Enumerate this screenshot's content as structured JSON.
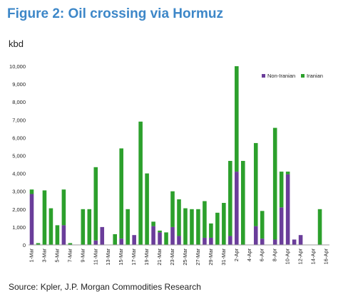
{
  "figure_title": "Figure 2: Oil crossing via Hormuz",
  "source_text": "Source: Kpler, J.P. Morgan Commodities Research",
  "chart_data": {
    "type": "bar",
    "stacked": true,
    "ylabel": "kbd",
    "ylim": [
      0,
      10000
    ],
    "yticks": [
      0,
      1000,
      2000,
      3000,
      4000,
      5000,
      6000,
      7000,
      8000,
      9000,
      10000
    ],
    "ytick_labels": [
      "0",
      "1,000",
      "2,000",
      "3,000",
      "4,000",
      "5,000",
      "6,000",
      "7,000",
      "8,000",
      "9,000",
      "10,000"
    ],
    "categories": [
      "1-Mar",
      "2-Mar",
      "3-Mar",
      "4-Mar",
      "5-Mar",
      "6-Mar",
      "7-Mar",
      "8-Mar",
      "9-Mar",
      "10-Mar",
      "11-Mar",
      "12-Mar",
      "13-Mar",
      "14-Mar",
      "15-Mar",
      "16-Mar",
      "17-Mar",
      "18-Mar",
      "19-Mar",
      "20-Mar",
      "21-Mar",
      "22-Mar",
      "23-Mar",
      "24-Mar",
      "25-Mar",
      "26-Mar",
      "27-Mar",
      "28-Mar",
      "29-Mar",
      "30-Mar",
      "31-Mar",
      "1-Apr",
      "2-Apr",
      "3-Apr",
      "4-Apr",
      "5-Apr",
      "6-Apr",
      "7-Apr",
      "8-Apr",
      "9-Apr",
      "10-Apr",
      "11-Apr",
      "12-Apr",
      "13-Apr",
      "14-Apr",
      "15-Apr",
      "16-Apr"
    ],
    "tick_labels": [
      "1-Mar",
      "3-Mar",
      "5-Mar",
      "7-Mar",
      "9-Mar",
      "11-Mar",
      "13-Mar",
      "15-Mar",
      "17-Mar",
      "19-Mar",
      "21-Mar",
      "23-Mar",
      "25-Mar",
      "27-Mar",
      "29-Mar",
      "31-Mar",
      "2-Apr",
      "4-Apr",
      "6-Apr",
      "8-Apr",
      "10-Apr",
      "12-Apr",
      "14-Apr",
      "16-Apr"
    ],
    "series": [
      {
        "name": "Non-Iranian",
        "color": "#6a3d9a",
        "values": [
          2850,
          0,
          0,
          0,
          0,
          1100,
          0,
          0,
          0,
          0,
          250,
          1000,
          0,
          0,
          350,
          0,
          550,
          0,
          0,
          1050,
          700,
          0,
          1000,
          500,
          0,
          0,
          0,
          400,
          400,
          0,
          0,
          500,
          4100,
          0,
          0,
          1050,
          350,
          0,
          300,
          2100,
          3950,
          300,
          550,
          0,
          0,
          0,
          0
        ]
      },
      {
        "name": "Iranian",
        "color": "#2ca02c",
        "values": [
          250,
          100,
          3050,
          2050,
          1100,
          2000,
          100,
          0,
          2000,
          2000,
          4100,
          0,
          0,
          600,
          5050,
          2000,
          0,
          6900,
          4000,
          250,
          100,
          700,
          2000,
          2050,
          2050,
          2000,
          2000,
          2050,
          800,
          1800,
          2350,
          4200,
          5900,
          4700,
          0,
          4650,
          1550,
          0,
          6250,
          2000,
          150,
          0,
          0,
          0,
          0,
          2000,
          0
        ]
      }
    ],
    "legend_position": "top-right",
    "grid": false
  }
}
